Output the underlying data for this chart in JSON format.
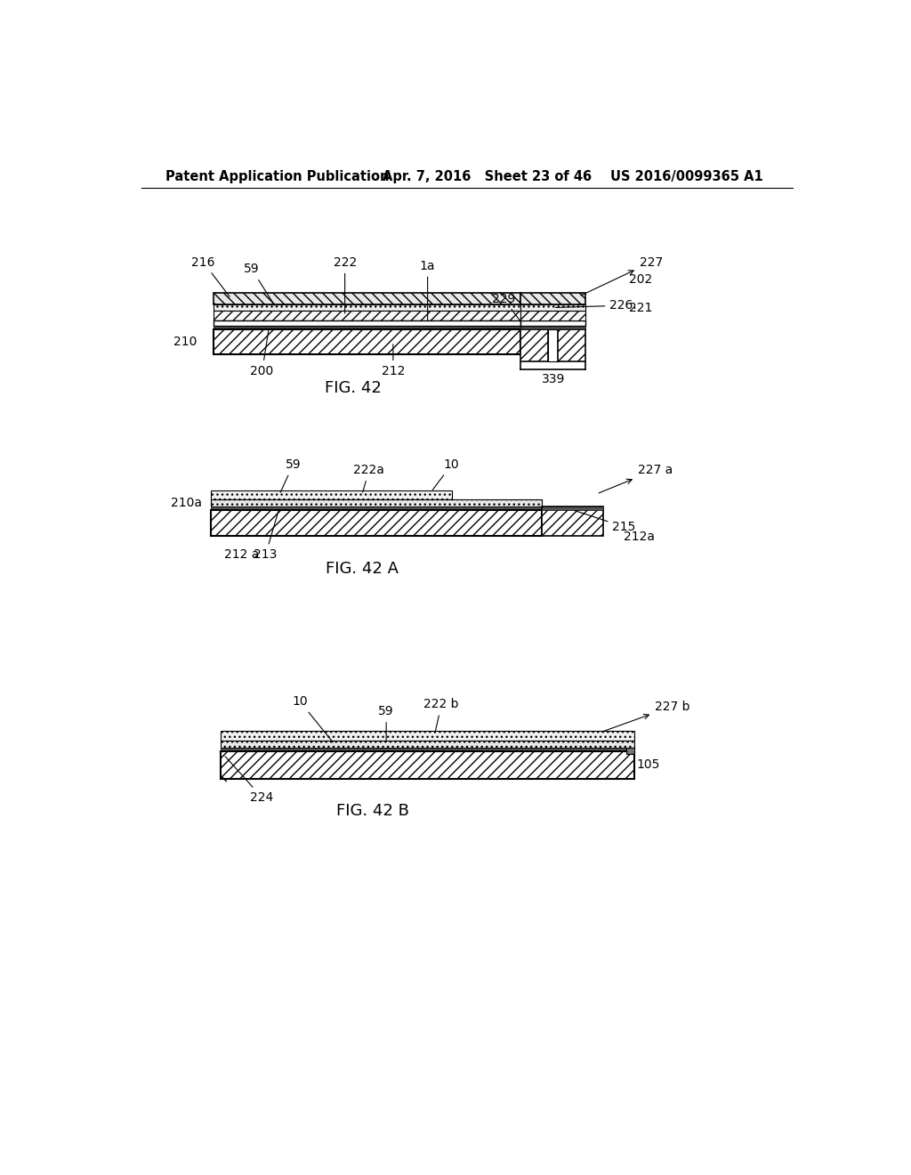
{
  "bg_color": "#ffffff",
  "header_left": "Patent Application Publication",
  "header_mid": "Apr. 7, 2016   Sheet 23 of 46",
  "header_right": "US 2016/0099365 A1",
  "fig42_caption": "FIG. 42",
  "fig42a_caption": "FIG. 42 A",
  "fig42b_caption": "FIG. 42 B",
  "line_color": "#000000",
  "fig_label_fontsize": 13,
  "annot_fontsize": 10,
  "header_fontsize": 10.5
}
